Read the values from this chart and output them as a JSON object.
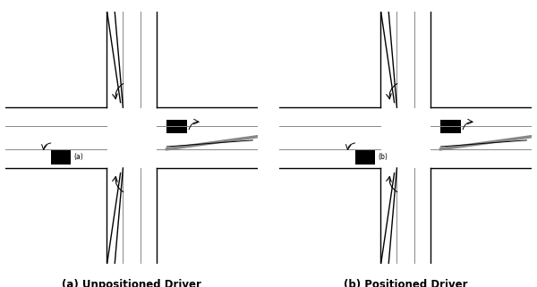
{
  "fig_width": 6.0,
  "fig_height": 3.21,
  "background_color": "#ffffff",
  "label_a": "(a) Unpositioned Driver",
  "label_b": "(b) Positioned Driver",
  "label_fontsize": 8.5,
  "road_color": "#000000",
  "road_lw": 1.0,
  "lane_color": "#888888",
  "car_color": "#000000"
}
